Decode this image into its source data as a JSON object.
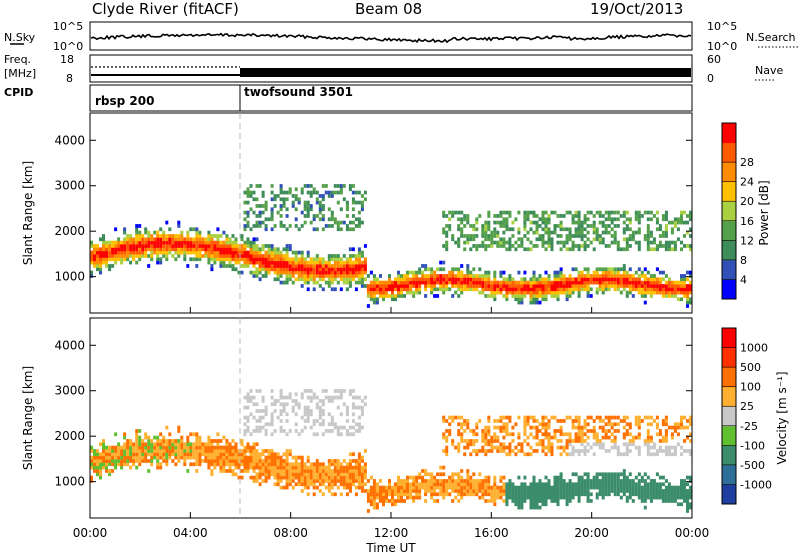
{
  "header": {
    "station": "Clyde River (fitACF)",
    "beam": "Beam 08",
    "date": "19/Oct/2013"
  },
  "top_panels": {
    "nsky_label": "N.Sky",
    "nsky_ticks": [
      "10^5",
      "10^0"
    ],
    "nsearch_label": "N.Search",
    "nsearch_ticks": [
      "10^5",
      "10^0"
    ],
    "freq_label_1": "Freq.",
    "freq_label_2": "[MHz]",
    "freq_ticks": [
      "18",
      "8"
    ],
    "nave_label": "Nave",
    "nave_ticks": [
      "60",
      "0"
    ],
    "cpid_label": "CPID",
    "cpid_segments": [
      {
        "name": "rbsp 200",
        "start_hour": 0,
        "end_hour": 6
      },
      {
        "name": "twofsound 3501",
        "start_hour": 6,
        "end_hour": 24
      }
    ]
  },
  "time_axis": {
    "xlabel": "Time UT",
    "ticks": [
      "00:00",
      "04:00",
      "08:00",
      "12:00",
      "16:00",
      "20:00",
      "00:00"
    ]
  },
  "chart_data": [
    {
      "type": "heatmap",
      "name": "power",
      "xlabel": "Time UT",
      "ylabel": "Slant Range [km]",
      "xlim": [
        0,
        24
      ],
      "ylim": [
        200,
        4600
      ],
      "y_ticks": [
        "1000",
        "2000",
        "3000",
        "4000"
      ],
      "y_tick_values": [
        1000,
        2000,
        3000,
        4000
      ],
      "colorbar_label": "Power [dB]",
      "colorbar_ticks": [
        "4",
        "8",
        "12",
        "16",
        "20",
        "24",
        "28"
      ],
      "colorbar_colors": [
        "#0000ff",
        "#3050b8",
        "#3d8c5a",
        "#55a04a",
        "#a8d040",
        "#ffc000",
        "#ff8c00",
        "#ff5a00",
        "#ff0000"
      ]
    },
    {
      "type": "heatmap",
      "name": "velocity",
      "xlabel": "Time UT",
      "ylabel": "Slant Range [km]",
      "xlim": [
        0,
        24
      ],
      "ylim": [
        200,
        4600
      ],
      "y_ticks": [
        "1000",
        "2000",
        "3000",
        "4000"
      ],
      "y_tick_values": [
        1000,
        2000,
        3000,
        4000
      ],
      "colorbar_label": "Velocity  [m s⁻¹]",
      "colorbar_ticks": [
        "1000",
        "500",
        "100",
        "25",
        "-25",
        "-100",
        "-500",
        "-1000"
      ],
      "colorbar_colors": [
        "#1e3fa0",
        "#2e6f9a",
        "#3a8c6a",
        "#60c030",
        "#c8c8c8",
        "#ffb030",
        "#ff7000",
        "#ff3000",
        "#ff0000"
      ]
    }
  ]
}
